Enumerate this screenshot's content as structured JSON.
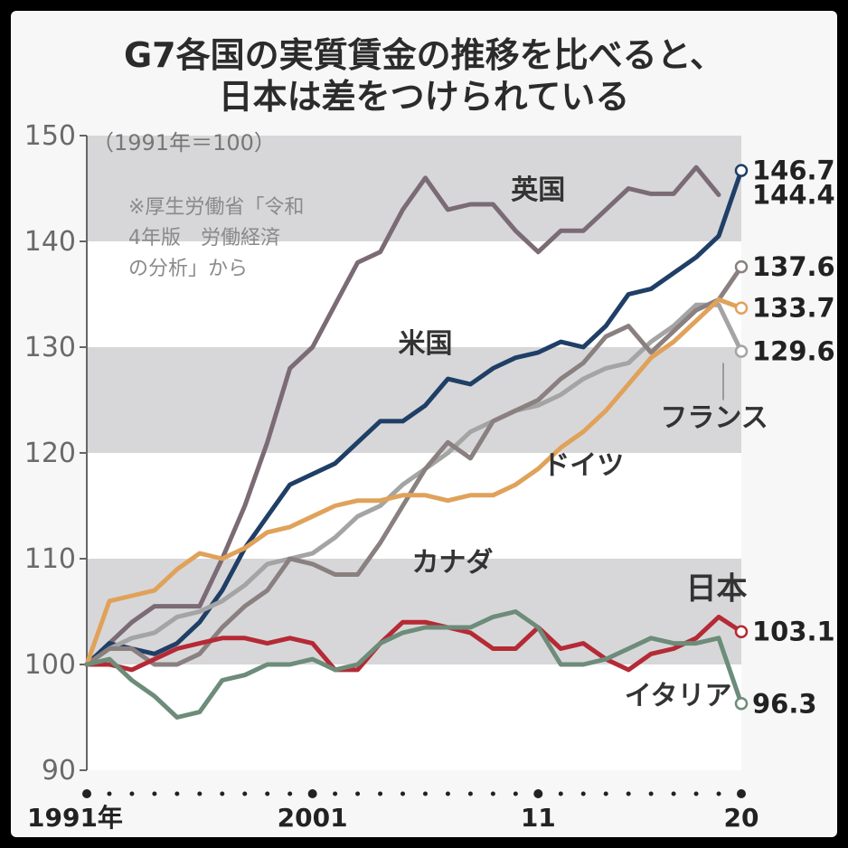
{
  "chart_data": {
    "type": "line",
    "title_lines": [
      "G7各国の実質賃金の推移を比べると、",
      "日本は差をつけられている"
    ],
    "unit_note": "（1991年＝100）",
    "source_note": [
      "※厚生労働省「令和",
      "4年版　労働経済",
      "の分析」から"
    ],
    "ylim": [
      90,
      150
    ],
    "yticks": [
      90,
      100,
      110,
      120,
      130,
      140,
      150
    ],
    "xlim": [
      1991,
      2020
    ],
    "xtick_labels": [
      {
        "year": 1991,
        "label": "1991年"
      },
      {
        "year": 2001,
        "label": "2001"
      },
      {
        "year": 2011,
        "label": "11"
      },
      {
        "year": 2020,
        "label": "20"
      }
    ],
    "x": [
      1991,
      1992,
      1993,
      1994,
      1995,
      1996,
      1997,
      1998,
      1999,
      2000,
      2001,
      2002,
      2003,
      2004,
      2005,
      2006,
      2007,
      2008,
      2009,
      2010,
      2011,
      2012,
      2013,
      2014,
      2015,
      2016,
      2017,
      2018,
      2019,
      2020
    ],
    "series": [
      {
        "name": "英国",
        "color": "#7b6b74",
        "end_label": "144.4",
        "end_marker": false,
        "values": [
          100,
          102,
          104,
          105.5,
          105.5,
          105.5,
          110,
          115,
          121,
          128,
          130,
          134,
          138,
          139,
          143,
          146,
          143,
          143.5,
          143.5,
          141,
          139,
          141,
          141,
          143,
          145,
          144.5,
          144.5,
          147,
          144.4,
          null
        ]
      },
      {
        "name": "米国",
        "color": "#1f3f66",
        "end_label": "146.7",
        "end_marker": true,
        "values": [
          100,
          102,
          101.5,
          101,
          102,
          104,
          107,
          111,
          114,
          117,
          118,
          119,
          121,
          123,
          123,
          124.5,
          127,
          126.5,
          128,
          129,
          129.5,
          130.5,
          130,
          132,
          135,
          135.5,
          137,
          138.5,
          140.5,
          146.7
        ]
      },
      {
        "name": "フランス",
        "color": "#a4a4a4",
        "end_label": "129.6",
        "end_marker": true,
        "values": [
          100,
          101.5,
          102.5,
          103,
          104.5,
          105,
          106,
          107.5,
          109.5,
          110,
          110.5,
          112,
          114,
          115,
          117,
          118.5,
          120,
          122,
          123,
          124,
          124.5,
          125.5,
          127,
          128,
          128.5,
          130.5,
          132,
          134,
          134,
          129.6
        ]
      },
      {
        "name": "カナダ",
        "color": "#8a8080",
        "end_label": "137.6",
        "end_marker": true,
        "values": [
          100,
          101.5,
          101.5,
          100,
          100,
          101,
          103.5,
          105.5,
          107,
          110,
          109.5,
          108.5,
          108.5,
          111.5,
          115,
          118.5,
          121,
          119.5,
          123,
          124,
          125,
          127,
          128.5,
          131,
          132,
          129.5,
          131.5,
          133.5,
          134.5,
          137.6
        ]
      },
      {
        "name": "ドイツ",
        "color": "#e0a25a",
        "end_label": "133.7",
        "end_marker": true,
        "values": [
          100,
          106,
          106.5,
          107,
          109,
          110.5,
          110,
          111,
          112.5,
          113,
          114,
          115,
          115.5,
          115.5,
          116,
          116,
          115.5,
          116,
          116,
          117,
          118.5,
          120.5,
          122,
          124,
          126.5,
          129,
          130.5,
          132.5,
          134.5,
          133.7
        ]
      },
      {
        "name": "日本",
        "color": "#b52a35",
        "end_label": "103.1",
        "end_marker": true,
        "values": [
          100,
          100,
          99.5,
          100.5,
          101.5,
          102,
          102.5,
          102.5,
          102,
          102.5,
          102,
          99.5,
          99.5,
          102,
          104,
          104,
          103.5,
          103,
          101.5,
          101.5,
          103.5,
          101.5,
          102,
          100.5,
          99.5,
          101,
          101.5,
          102.5,
          104.5,
          103.1
        ]
      },
      {
        "name": "イタリア",
        "color": "#6d8c7a",
        "end_label": "96.3",
        "end_marker": true,
        "values": [
          100,
          100.5,
          98.5,
          97,
          95,
          95.5,
          98.5,
          99,
          100,
          100,
          100.5,
          99.5,
          100,
          102,
          103,
          103.5,
          103.5,
          103.5,
          104.5,
          105,
          103.5,
          100,
          100,
          100.5,
          101.5,
          102.5,
          102,
          102,
          102.5,
          96.3
        ]
      }
    ],
    "series_labels": [
      {
        "name": "英国",
        "at": [
          2011,
          144
        ]
      },
      {
        "name": "米国",
        "at": [
          2006,
          129.5
        ]
      },
      {
        "name": "フランス",
        "at": [
          2018.8,
          122.5
        ]
      },
      {
        "name": "ドイツ",
        "at": [
          2013,
          118
        ]
      },
      {
        "name": "カナダ",
        "at": [
          2007.2,
          108.8
        ]
      },
      {
        "name": "日本",
        "at": [
          2018.9,
          106.2
        ]
      },
      {
        "name": "イタリア",
        "at": [
          2017.2,
          96.2
        ]
      }
    ]
  }
}
